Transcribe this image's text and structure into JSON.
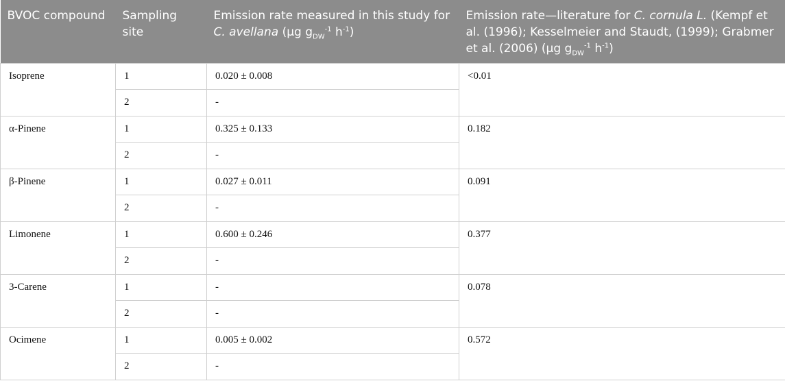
{
  "header": {
    "col1": "BVOC compound",
    "col2": "Sampling site",
    "col3_pre": "Emission rate measured in this study for ",
    "col3_species": "C. avellana",
    "col3_unit_open": " (µg g",
    "col3_unit_sub": "DW",
    "col3_unit_sup1": "-1",
    "col3_unit_h": " h",
    "col3_unit_sup2": "-1",
    "col3_unit_close": ")",
    "col4_pre": "Emission rate—literature for ",
    "col4_species": "C. cornula L.",
    "col4_refs": " (Kempf et al. (1996); Kesselmeier and Staudt, (1999); Grabmer et al. (2006) (µg g",
    "col4_unit_sub": "DW",
    "col4_unit_sup1": "-1",
    "col4_unit_h": " h",
    "col4_unit_sup2": "-1",
    "col4_unit_close": ")"
  },
  "rows": [
    {
      "compound": "Isoprene",
      "site1": "1",
      "value1": "0.020 ± 0.008",
      "site2": "2",
      "value2": "-",
      "literature": "<0.01"
    },
    {
      "compound": "α-Pinene",
      "site1": "1",
      "value1": "0.325 ± 0.133",
      "site2": "2",
      "value2": "-",
      "literature": "0.182"
    },
    {
      "compound": "β-Pinene",
      "site1": "1",
      "value1": "0.027 ± 0.011",
      "site2": "2",
      "value2": "-",
      "literature": "0.091"
    },
    {
      "compound": "Limonene",
      "site1": "1",
      "value1": "0.600 ± 0.246",
      "site2": "2",
      "value2": "-",
      "literature": "0.377"
    },
    {
      "compound": "3-Carene",
      "site1": "1",
      "value1": "-",
      "site2": "2",
      "value2": "-",
      "literature": "0.078"
    },
    {
      "compound": "Ocimene",
      "site1": "1",
      "value1": "0.005 ± 0.002",
      "site2": "2",
      "value2": "-",
      "literature": "0.572"
    }
  ]
}
